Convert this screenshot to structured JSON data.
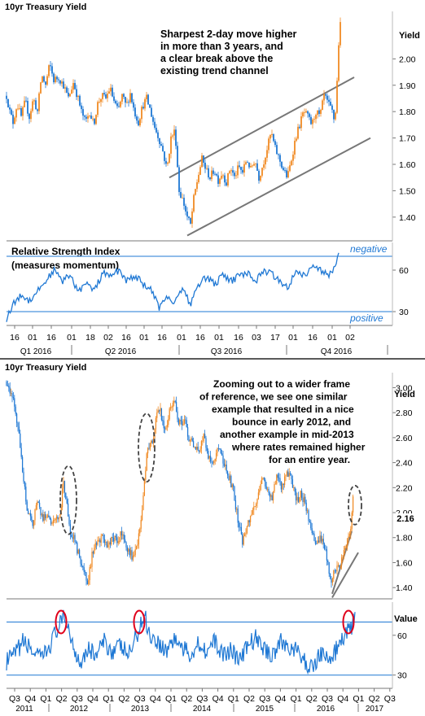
{
  "chart_data": [
    {
      "type": "candlestick",
      "title": "10yr Treasury Yield",
      "ylabel": "Yield",
      "ylim": [
        1.31,
        2.18
      ],
      "y_ticks": [
        "2.00",
        "1.90",
        "1.80",
        "1.70",
        "1.60",
        "1.50",
        "1.40"
      ],
      "y_tick_values": [
        2.0,
        1.9,
        1.8,
        1.7,
        1.6,
        1.5,
        1.4
      ],
      "annotation": [
        "Sharpest 2-day move higher",
        "in more than 3 years, and",
        "a clear break above the",
        "existing trend channel"
      ],
      "path_points": [
        [
          0,
          1.86
        ],
        [
          4,
          1.8
        ],
        [
          8,
          1.76
        ],
        [
          13,
          1.83
        ],
        [
          18,
          1.78
        ],
        [
          23,
          1.84
        ],
        [
          28,
          1.78
        ],
        [
          33,
          1.85
        ],
        [
          38,
          1.8
        ],
        [
          43,
          1.94
        ],
        [
          48,
          1.9
        ],
        [
          53,
          1.98
        ],
        [
          58,
          1.92
        ],
        [
          64,
          1.93
        ],
        [
          70,
          1.9
        ],
        [
          76,
          1.85
        ],
        [
          82,
          1.91
        ],
        [
          87,
          1.86
        ],
        [
          92,
          1.8
        ],
        [
          97,
          1.76
        ],
        [
          102,
          1.8
        ],
        [
          107,
          1.75
        ],
        [
          112,
          1.83
        ],
        [
          117,
          1.86
        ],
        [
          122,
          1.85
        ],
        [
          127,
          1.89
        ],
        [
          132,
          1.84
        ],
        [
          137,
          1.8
        ],
        [
          142,
          1.86
        ],
        [
          147,
          1.82
        ],
        [
          152,
          1.87
        ],
        [
          157,
          1.8
        ],
        [
          162,
          1.76
        ],
        [
          167,
          1.82
        ],
        [
          172,
          1.85
        ],
        [
          177,
          1.8
        ],
        [
          182,
          1.74
        ],
        [
          187,
          1.7
        ],
        [
          192,
          1.65
        ],
        [
          197,
          1.58
        ],
        [
          202,
          1.7
        ],
        [
          207,
          1.73
        ],
        [
          212,
          1.5
        ],
        [
          217,
          1.46
        ],
        [
          222,
          1.4
        ],
        [
          226,
          1.37
        ],
        [
          230,
          1.47
        ],
        [
          235,
          1.55
        ],
        [
          240,
          1.62
        ],
        [
          245,
          1.58
        ],
        [
          250,
          1.55
        ],
        [
          255,
          1.58
        ],
        [
          260,
          1.54
        ],
        [
          265,
          1.57
        ],
        [
          270,
          1.53
        ],
        [
          275,
          1.59
        ],
        [
          280,
          1.55
        ],
        [
          285,
          1.59
        ],
        [
          290,
          1.57
        ],
        [
          295,
          1.62
        ],
        [
          300,
          1.58
        ],
        [
          305,
          1.62
        ],
        [
          310,
          1.55
        ],
        [
          315,
          1.6
        ],
        [
          320,
          1.66
        ],
        [
          325,
          1.72
        ],
        [
          330,
          1.66
        ],
        [
          335,
          1.62
        ],
        [
          340,
          1.58
        ],
        [
          345,
          1.55
        ],
        [
          350,
          1.62
        ],
        [
          355,
          1.7
        ],
        [
          360,
          1.75
        ],
        [
          365,
          1.8
        ],
        [
          370,
          1.78
        ],
        [
          375,
          1.75
        ],
        [
          380,
          1.8
        ],
        [
          385,
          1.78
        ],
        [
          390,
          1.86
        ],
        [
          395,
          1.83
        ],
        [
          400,
          1.8
        ],
        [
          403,
          1.76
        ],
        [
          405,
          1.84
        ],
        [
          408,
          2.06
        ],
        [
          411,
          2.16
        ]
      ],
      "trend_channel": {
        "upper": [
          [
            1.55,
            200
          ],
          [
            1.93,
            427
          ]
        ],
        "lower": [
          [
            1.33,
            222
          ],
          [
            1.7,
            447
          ]
        ]
      },
      "x_ticks": [
        "16",
        "01",
        "16",
        "01",
        "18",
        "02",
        "16",
        "01",
        "16",
        "01",
        "16",
        "01",
        "16",
        "03",
        "17",
        "01",
        "16",
        "01",
        "02"
      ],
      "quarters": [
        "Q1 2016",
        "Q2 2016",
        "Q3 2016",
        "Q4 2016"
      ]
    },
    {
      "type": "line",
      "title": "Relative Strength Index",
      "subtitle": "(measures momentum)",
      "ylim": [
        20,
        80
      ],
      "y_ticks": [
        "60",
        "30"
      ],
      "y_tick_values": [
        60,
        30
      ],
      "levels": [
        {
          "value": 70,
          "label": "negative"
        },
        {
          "value": 30,
          "label": "positive"
        }
      ],
      "path_points": [
        [
          0,
          25
        ],
        [
          8,
          35
        ],
        [
          18,
          42
        ],
        [
          28,
          38
        ],
        [
          38,
          45
        ],
        [
          48,
          52
        ],
        [
          58,
          60
        ],
        [
          68,
          52
        ],
        [
          78,
          56
        ],
        [
          88,
          45
        ],
        [
          98,
          50
        ],
        [
          108,
          45
        ],
        [
          118,
          58
        ],
        [
          128,
          55
        ],
        [
          138,
          60
        ],
        [
          148,
          52
        ],
        [
          158,
          56
        ],
        [
          168,
          50
        ],
        [
          178,
          45
        ],
        [
          188,
          32
        ],
        [
          196,
          42
        ],
        [
          206,
          36
        ],
        [
          216,
          48
        ],
        [
          226,
          35
        ],
        [
          236,
          50
        ],
        [
          246,
          55
        ],
        [
          256,
          50
        ],
        [
          266,
          56
        ],
        [
          276,
          52
        ],
        [
          286,
          56
        ],
        [
          296,
          58
        ],
        [
          306,
          52
        ],
        [
          316,
          60
        ],
        [
          326,
          57
        ],
        [
          336,
          52
        ],
        [
          346,
          48
        ],
        [
          356,
          60
        ],
        [
          366,
          56
        ],
        [
          376,
          62
        ],
        [
          386,
          60
        ],
        [
          396,
          56
        ],
        [
          402,
          60
        ],
        [
          406,
          68
        ],
        [
          409,
          75
        ]
      ]
    },
    {
      "type": "candlestick",
      "title": "10yr Treasury Yield",
      "ylabel": "Yield",
      "ylim": [
        1.31,
        3.12
      ],
      "y_ticks": [
        "3.00",
        "2.80",
        "2.60",
        "2.40",
        "2.20",
        "2.00",
        "1.80",
        "1.60",
        "1.40"
      ],
      "y_tick_values": [
        3.0,
        2.8,
        2.6,
        2.4,
        2.2,
        2.0,
        1.8,
        1.6,
        1.4
      ],
      "highlight_value": "2.16",
      "annotation": [
        "Zooming out to a wider frame",
        "of reference, we see one similar",
        "example that resulted in a nice",
        "bounce in early 2012, and",
        "another example in mid-2013",
        "where rates remained higher",
        "for an entire year."
      ],
      "path_points": [
        [
          0,
          3.05
        ],
        [
          8,
          2.9
        ],
        [
          14,
          2.7
        ],
        [
          20,
          2.3
        ],
        [
          26,
          2.0
        ],
        [
          32,
          1.9
        ],
        [
          38,
          2.1
        ],
        [
          44,
          1.95
        ],
        [
          50,
          2.0
        ],
        [
          56,
          1.9
        ],
        [
          62,
          1.95
        ],
        [
          66,
          2.0
        ],
        [
          70,
          2.25
        ],
        [
          74,
          2.05
        ],
        [
          78,
          1.85
        ],
        [
          82,
          1.8
        ],
        [
          88,
          1.68
        ],
        [
          94,
          1.55
        ],
        [
          100,
          1.45
        ],
        [
          106,
          1.7
        ],
        [
          112,
          1.75
        ],
        [
          118,
          1.8
        ],
        [
          124,
          1.7
        ],
        [
          130,
          1.82
        ],
        [
          136,
          1.75
        ],
        [
          142,
          1.85
        ],
        [
          148,
          1.72
        ],
        [
          154,
          1.65
        ],
        [
          160,
          1.75
        ],
        [
          164,
          1.85
        ],
        [
          168,
          2.15
        ],
        [
          172,
          2.45
        ],
        [
          176,
          2.55
        ],
        [
          180,
          2.6
        ],
        [
          184,
          2.75
        ],
        [
          188,
          2.85
        ],
        [
          194,
          2.65
        ],
        [
          200,
          2.8
        ],
        [
          206,
          2.92
        ],
        [
          212,
          2.7
        ],
        [
          218,
          2.75
        ],
        [
          224,
          2.6
        ],
        [
          230,
          2.55
        ],
        [
          236,
          2.5
        ],
        [
          242,
          2.62
        ],
        [
          248,
          2.45
        ],
        [
          254,
          2.4
        ],
        [
          260,
          2.55
        ],
        [
          266,
          2.4
        ],
        [
          272,
          2.3
        ],
        [
          278,
          2.2
        ],
        [
          284,
          1.95
        ],
        [
          290,
          1.75
        ],
        [
          296,
          1.9
        ],
        [
          302,
          2.0
        ],
        [
          308,
          2.1
        ],
        [
          314,
          2.3
        ],
        [
          320,
          2.2
        ],
        [
          326,
          2.1
        ],
        [
          332,
          2.3
        ],
        [
          338,
          2.2
        ],
        [
          344,
          2.35
        ],
        [
          350,
          2.25
        ],
        [
          356,
          2.1
        ],
        [
          362,
          2.15
        ],
        [
          368,
          2.05
        ],
        [
          374,
          1.85
        ],
        [
          380,
          1.75
        ],
        [
          386,
          1.8
        ],
        [
          392,
          1.7
        ],
        [
          398,
          1.45
        ],
        [
          404,
          1.55
        ],
        [
          410,
          1.6
        ],
        [
          416,
          1.7
        ],
        [
          420,
          1.8
        ],
        [
          423,
          1.85
        ],
        [
          426,
          2.15
        ]
      ],
      "trend_channel": {
        "upper": [
          [
            1.35,
            400
          ],
          [
            1.85,
            424
          ]
        ],
        "lower": [
          [
            1.32,
            400
          ],
          [
            1.68,
            432
          ]
        ]
      },
      "x_ticks": [
        "Q3",
        "Q4",
        "Q1",
        "Q2",
        "Q3",
        "Q4",
        "Q1",
        "Q2",
        "Q3",
        "Q4",
        "Q1",
        "Q2",
        "Q3",
        "Q4",
        "Q1",
        "Q2",
        "Q3",
        "Q4",
        "Q1",
        "Q2",
        "Q3",
        "Q4",
        "Q1",
        "Q2",
        "Q3"
      ],
      "years": [
        "2011",
        "2012",
        "2013",
        "2014",
        "2015",
        "2016",
        "2017"
      ]
    },
    {
      "type": "line",
      "title": "Value",
      "ylim": [
        20,
        85
      ],
      "y_ticks": [
        "60",
        "30"
      ],
      "y_tick_values": [
        60,
        30
      ],
      "levels": [
        {
          "value": 70
        },
        {
          "value": 30
        }
      ],
      "path_points": [
        [
          0,
          40
        ],
        [
          10,
          45
        ],
        [
          20,
          55
        ],
        [
          30,
          50
        ],
        [
          40,
          42
        ],
        [
          50,
          48
        ],
        [
          60,
          62
        ],
        [
          70,
          72
        ],
        [
          75,
          70
        ],
        [
          80,
          55
        ],
        [
          90,
          40
        ],
        [
          100,
          50
        ],
        [
          110,
          45
        ],
        [
          120,
          55
        ],
        [
          130,
          48
        ],
        [
          140,
          52
        ],
        [
          150,
          45
        ],
        [
          160,
          60
        ],
        [
          166,
          70
        ],
        [
          170,
          75
        ],
        [
          176,
          60
        ],
        [
          186,
          55
        ],
        [
          196,
          48
        ],
        [
          206,
          58
        ],
        [
          216,
          50
        ],
        [
          226,
          45
        ],
        [
          236,
          55
        ],
        [
          246,
          48
        ],
        [
          256,
          55
        ],
        [
          266,
          45
        ],
        [
          276,
          50
        ],
        [
          286,
          40
        ],
        [
          296,
          52
        ],
        [
          306,
          58
        ],
        [
          316,
          50
        ],
        [
          326,
          45
        ],
        [
          336,
          55
        ],
        [
          346,
          52
        ],
        [
          356,
          48
        ],
        [
          366,
          40
        ],
        [
          376,
          35
        ],
        [
          386,
          48
        ],
        [
          396,
          40
        ],
        [
          406,
          50
        ],
        [
          416,
          60
        ],
        [
          422,
          65
        ],
        [
          428,
          72
        ]
      ]
    }
  ]
}
